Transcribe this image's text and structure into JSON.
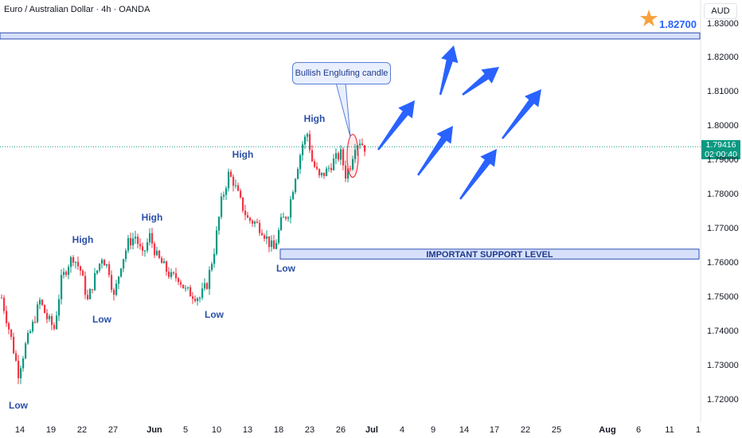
{
  "header": {
    "title": "Euro / Australian Dollar · 4h · OANDA",
    "currency": "AUD"
  },
  "target": {
    "price_label": "1.82700",
    "value": 1.827,
    "icon": "star-icon",
    "color": "#f7a23c"
  },
  "support": {
    "label": "IMPORTANT SUPPORT LEVEL",
    "low": 1.7613,
    "high": 1.7642
  },
  "target_zone": {
    "low": 1.8257,
    "high": 1.8275
  },
  "callout": {
    "text": "Bullish Englufing candle"
  },
  "current_price": {
    "value": 1.79416,
    "label": "1.79416",
    "countdown": "02:00:40",
    "color": "#089981"
  },
  "colors": {
    "up": "#089981",
    "down": "#f23645",
    "accent": "#2962ff",
    "zone_border": "#2f4fb0",
    "zone_fill": "#d6e0fb"
  },
  "chart_data": {
    "type": "candlestick",
    "timeframe": "4h",
    "y_ticks": [
      "1.83000",
      "1.82000",
      "1.81000",
      "1.80000",
      "1.79000",
      "1.78000",
      "1.77000",
      "1.76000",
      "1.75000",
      "1.74000",
      "1.73000",
      "1.72000"
    ],
    "ylim": [
      1.716,
      1.833
    ],
    "x_ticks": [
      {
        "label": "14",
        "bold": false
      },
      {
        "label": "19",
        "bold": false
      },
      {
        "label": "22",
        "bold": false
      },
      {
        "label": "27",
        "bold": false
      },
      {
        "label": "Jun",
        "bold": true
      },
      {
        "label": "5",
        "bold": false
      },
      {
        "label": "10",
        "bold": false
      },
      {
        "label": "13",
        "bold": false
      },
      {
        "label": "18",
        "bold": false
      },
      {
        "label": "23",
        "bold": false
      },
      {
        "label": "26",
        "bold": false
      },
      {
        "label": "Jul",
        "bold": true
      },
      {
        "label": "4",
        "bold": false
      },
      {
        "label": "9",
        "bold": false
      },
      {
        "label": "14",
        "bold": false
      },
      {
        "label": "17",
        "bold": false
      },
      {
        "label": "22",
        "bold": false
      },
      {
        "label": "25",
        "bold": false
      },
      {
        "label": "Aug",
        "bold": true
      },
      {
        "label": "6",
        "bold": false
      },
      {
        "label": "11",
        "bold": false
      },
      {
        "label": "1",
        "bold": false
      }
    ],
    "price_path": [
      {
        "slot": 0,
        "price": 1.75
      },
      {
        "slot": 4,
        "price": 1.738
      },
      {
        "slot": 7,
        "price": 1.728
      },
      {
        "slot": 10,
        "price": 1.736
      },
      {
        "slot": 13,
        "price": 1.742
      },
      {
        "slot": 16,
        "price": 1.749
      },
      {
        "slot": 19,
        "price": 1.744
      },
      {
        "slot": 22,
        "price": 1.741
      },
      {
        "slot": 25,
        "price": 1.755
      },
      {
        "slot": 28,
        "price": 1.76
      },
      {
        "slot": 30,
        "price": 1.762
      },
      {
        "slot": 33,
        "price": 1.758
      },
      {
        "slot": 36,
        "price": 1.749
      },
      {
        "slot": 39,
        "price": 1.756
      },
      {
        "slot": 42,
        "price": 1.762
      },
      {
        "slot": 45,
        "price": 1.758
      },
      {
        "slot": 47,
        "price": 1.75
      },
      {
        "slot": 50,
        "price": 1.76
      },
      {
        "slot": 53,
        "price": 1.766
      },
      {
        "slot": 56,
        "price": 1.768
      },
      {
        "slot": 59,
        "price": 1.762
      },
      {
        "slot": 62,
        "price": 1.768
      },
      {
        "slot": 65,
        "price": 1.762
      },
      {
        "slot": 68,
        "price": 1.759
      },
      {
        "slot": 71,
        "price": 1.756
      },
      {
        "slot": 74,
        "price": 1.756
      },
      {
        "slot": 77,
        "price": 1.752
      },
      {
        "slot": 80,
        "price": 1.751
      },
      {
        "slot": 83,
        "price": 1.75
      },
      {
        "slot": 86,
        "price": 1.754
      },
      {
        "slot": 89,
        "price": 1.764
      },
      {
        "slot": 92,
        "price": 1.778
      },
      {
        "slot": 95,
        "price": 1.786
      },
      {
        "slot": 97,
        "price": 1.784
      },
      {
        "slot": 100,
        "price": 1.778
      },
      {
        "slot": 103,
        "price": 1.773
      },
      {
        "slot": 106,
        "price": 1.772
      },
      {
        "slot": 109,
        "price": 1.77
      },
      {
        "slot": 112,
        "price": 1.766
      },
      {
        "slot": 114,
        "price": 1.764
      },
      {
        "slot": 117,
        "price": 1.772
      },
      {
        "slot": 120,
        "price": 1.775
      },
      {
        "slot": 123,
        "price": 1.786
      },
      {
        "slot": 126,
        "price": 1.795
      },
      {
        "slot": 128,
        "price": 1.798
      },
      {
        "slot": 130,
        "price": 1.79
      },
      {
        "slot": 133,
        "price": 1.785
      },
      {
        "slot": 136,
        "price": 1.787
      },
      {
        "slot": 139,
        "price": 1.79
      },
      {
        "slot": 142,
        "price": 1.792
      },
      {
        "slot": 144,
        "price": 1.786
      },
      {
        "slot": 146,
        "price": 1.789
      },
      {
        "slot": 148,
        "price": 1.795
      },
      {
        "slot": 150,
        "price": 1.796
      },
      {
        "slot": 152,
        "price": 1.794
      }
    ],
    "swing_labels": [
      {
        "text": "Low",
        "slot": 6,
        "price": 1.7215,
        "pos": "below"
      },
      {
        "text": "High",
        "slot": 33,
        "price": 1.7635,
        "pos": "above"
      },
      {
        "text": "Low",
        "slot": 41,
        "price": 1.7466,
        "pos": "below"
      },
      {
        "text": "High",
        "slot": 62,
        "price": 1.7701,
        "pos": "above"
      },
      {
        "text": "Low",
        "slot": 88,
        "price": 1.748,
        "pos": "below"
      },
      {
        "text": "High",
        "slot": 100,
        "price": 1.7885,
        "pos": "above"
      },
      {
        "text": "Low",
        "slot": 118,
        "price": 1.7615,
        "pos": "below"
      },
      {
        "text": "High",
        "slot": 130,
        "price": 1.799,
        "pos": "above"
      }
    ],
    "projection_arrows": [
      {
        "from_slot": 158,
        "from_price": 1.7915,
        "to_slot": 177,
        "to_price": 1.808
      },
      {
        "from_slot": 174,
        "from_price": 1.787,
        "to_slot": 194,
        "to_price": 1.8075
      },
      {
        "from_slot": 180,
        "from_price": 1.786,
        "to_slot": 196,
        "to_price": 1.8
      },
      {
        "from_slot": 193,
        "from_price": 1.801,
        "to_slot": 212,
        "to_price": 1.818
      },
      {
        "from_slot": 196,
        "from_price": 1.786,
        "to_slot": 214,
        "to_price": 1.801
      },
      {
        "from_slot": 213,
        "from_price": 1.799,
        "to_slot": 232,
        "to_price": 1.811
      },
      {
        "from_slot": 193,
        "from_price": 1.784,
        "to_slot": 210,
        "to_price": 1.794
      }
    ]
  }
}
